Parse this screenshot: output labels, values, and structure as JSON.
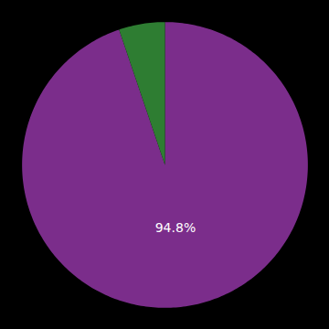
{
  "chart_data": {
    "type": "pie",
    "values": [
      94.8,
      5.2
    ],
    "colors": [
      "#7B2D8B",
      "#2E7D32"
    ],
    "data_labels": true,
    "value_labels": [
      "94.8%",
      null
    ],
    "tick_labels": false
  }
}
